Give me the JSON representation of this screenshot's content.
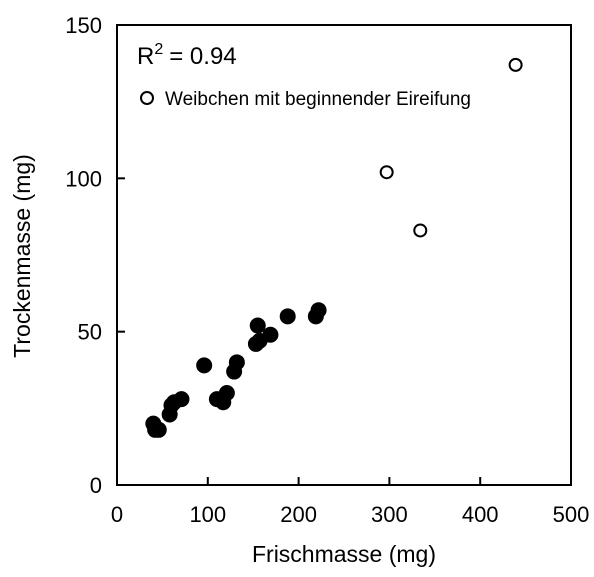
{
  "chart_data": {
    "type": "scatter",
    "xlabel": "Frischmasse (mg)",
    "ylabel": "Trockenmasse (mg)",
    "xlim": [
      0,
      500
    ],
    "ylim": [
      0,
      150
    ],
    "xticks": [
      0,
      100,
      200,
      300,
      400,
      500
    ],
    "yticks": [
      0,
      50,
      100,
      150
    ],
    "grid": false,
    "legend_position": "top-left",
    "annotation": {
      "r_label": "R",
      "r_exponent": "2",
      "r_value": "= 0.94"
    },
    "series": [
      {
        "marker": "filled-circle",
        "color": "#000000",
        "points": [
          [
            40,
            20
          ],
          [
            42,
            18
          ],
          [
            46,
            18
          ],
          [
            58,
            23
          ],
          [
            60,
            26
          ],
          [
            63,
            27
          ],
          [
            71,
            28
          ],
          [
            96,
            39
          ],
          [
            110,
            28
          ],
          [
            117,
            27
          ],
          [
            121,
            30
          ],
          [
            129,
            37
          ],
          [
            132,
            40
          ],
          [
            153,
            46
          ],
          [
            155,
            52
          ],
          [
            157,
            47
          ],
          [
            169,
            49
          ],
          [
            188,
            55
          ],
          [
            219,
            55
          ],
          [
            222,
            57
          ]
        ]
      },
      {
        "name": "Weibchen mit beginnender Eireifung",
        "marker": "open-circle",
        "color": "#000000",
        "points": [
          [
            297,
            102
          ],
          [
            334,
            83
          ],
          [
            439,
            137
          ]
        ]
      }
    ]
  }
}
